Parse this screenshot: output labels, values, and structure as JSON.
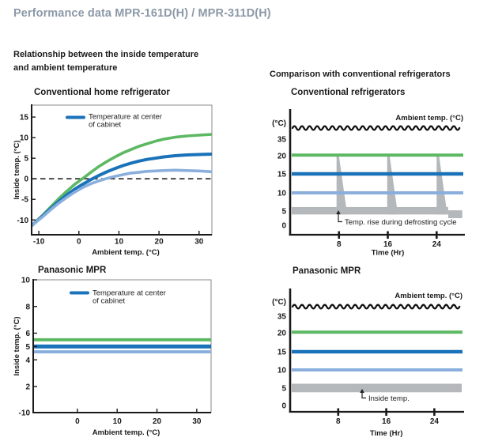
{
  "page": {
    "title": "Performance data MPR-161D(H) / MPR-311D(H)"
  },
  "sections": {
    "left": {
      "heading_line1": "Relationship between the inside temperature",
      "heading_line2": "and ambient temperature"
    },
    "right": {
      "heading": "Comparison with conventional refrigerators"
    }
  },
  "colors": {
    "accent_blue": "#1a72b9",
    "green": "#5db863",
    "light_blue": "#8aafdd",
    "gray_band": "#b4b8ba",
    "title_gray": "#8c99a7",
    "text": "#1a1a1a"
  },
  "chart_data": [
    {
      "type": "line",
      "title": "Conventional home refrigerator",
      "xlabel": "Ambient temp.  (°C)",
      "ylabel": "Inside temp.  (°C)",
      "x_ticks": [
        -10,
        0,
        10,
        20,
        30
      ],
      "y_ticks": [
        15,
        10,
        5,
        0,
        -5,
        -10
      ],
      "xlim": [
        -11.8,
        33.2
      ],
      "ylim": [
        -13.6,
        17.9
      ],
      "zero_line_dashed": true,
      "legend": {
        "color": "#1a72b9",
        "line1": "Temperature at center",
        "line2": "of cabinet"
      },
      "series": [
        {
          "name": "upper-limit",
          "color": "#5db863",
          "width": 3.6,
          "points": [
            [
              -11.8,
              -11.4
            ],
            [
              -9,
              -8.8
            ],
            [
              -7,
              -6.8
            ],
            [
              -5,
              -4.8
            ],
            [
              -3,
              -3.0
            ],
            [
              -1,
              -1.3
            ],
            [
              1,
              0.1
            ],
            [
              3,
              1.6
            ],
            [
              5,
              3.0
            ],
            [
              7,
              4.2
            ],
            [
              9,
              5.3
            ],
            [
              11,
              6.3
            ],
            [
              13,
              7.1
            ],
            [
              15,
              7.9
            ],
            [
              17,
              8.5
            ],
            [
              19,
              9.1
            ],
            [
              21,
              9.6
            ],
            [
              24,
              10.1
            ],
            [
              27,
              10.4
            ],
            [
              30,
              10.6
            ],
            [
              33.2,
              10.8
            ]
          ]
        },
        {
          "name": "center-of-cabinet",
          "color": "#1a72b9",
          "width": 4,
          "points": [
            [
              -11.8,
              -11.4
            ],
            [
              -9,
              -9.0
            ],
            [
              -7,
              -7.2
            ],
            [
              -5,
              -5.5
            ],
            [
              -3,
              -3.9
            ],
            [
              -1,
              -2.5
            ],
            [
              1,
              -1.3
            ],
            [
              3,
              -0.2
            ],
            [
              5,
              0.8
            ],
            [
              7,
              1.7
            ],
            [
              9,
              2.5
            ],
            [
              11,
              3.2
            ],
            [
              13,
              3.8
            ],
            [
              15,
              4.3
            ],
            [
              17,
              4.7
            ],
            [
              19,
              5.0
            ],
            [
              21,
              5.3
            ],
            [
              24,
              5.6
            ],
            [
              27,
              5.8
            ],
            [
              30,
              5.9
            ],
            [
              33.2,
              6.0
            ]
          ]
        },
        {
          "name": "lower-limit",
          "color": "#8aafdd",
          "width": 3.6,
          "points": [
            [
              -11.8,
              -11.4
            ],
            [
              -9,
              -9.2
            ],
            [
              -7,
              -7.5
            ],
            [
              -5,
              -5.9
            ],
            [
              -3,
              -4.5
            ],
            [
              -1,
              -3.2
            ],
            [
              1,
              -2.1
            ],
            [
              3,
              -1.2
            ],
            [
              5,
              -0.5
            ],
            [
              7,
              0.1
            ],
            [
              9,
              0.6
            ],
            [
              11,
              1.0
            ],
            [
              13,
              1.4
            ],
            [
              15,
              1.6
            ],
            [
              17,
              1.8
            ],
            [
              19,
              1.9
            ],
            [
              21,
              2.0
            ],
            [
              24,
              2.1
            ],
            [
              27,
              2.0
            ],
            [
              30,
              1.9
            ],
            [
              33.2,
              1.7
            ]
          ]
        }
      ]
    },
    {
      "type": "timeline",
      "title": "Conventional refrigerators",
      "unit_label": "(°C)",
      "ambient_label": "Ambient temp. (°C)",
      "xlabel": "Time (Hr)",
      "x_ticks": [
        8,
        16,
        24
      ],
      "y_tick_labels": [
        35,
        20,
        15,
        10,
        5,
        0
      ],
      "ambient_wave": true,
      "lines": [
        {
          "name": "upper-limit",
          "value": 20.5,
          "color": "#5db863",
          "width": 4
        },
        {
          "name": "center-of-cabinet",
          "value": 15,
          "color": "#1a72b9",
          "width": 4.6
        },
        {
          "name": "lower-limit",
          "value": 10,
          "color": "#8aafdd",
          "width": 4
        }
      ],
      "band": {
        "low": 3.8,
        "high": 6.1,
        "color": "#b4b8ba"
      },
      "defrost_spikes": {
        "hours": [
          7.6,
          15.9,
          24
        ],
        "peak": 20.2
      },
      "tail": {
        "from_hr": 25.9,
        "to_hr": 28.2,
        "low": 2.5,
        "high": 5.2
      },
      "annotation": "Temp. rise during defrosting cycle"
    },
    {
      "type": "line",
      "title": "Panasonic MPR",
      "xlabel": "Ambient temp.  (°C)",
      "ylabel": "Inside temp.  (°C)",
      "x_ticks": [
        0,
        10,
        20,
        30
      ],
      "y_ticks": [
        10,
        8,
        6,
        5,
        4,
        2,
        -10
      ],
      "y_ticks_no_mark": [
        -10
      ],
      "xlim": [
        -11.1,
        33.6
      ],
      "y_axis_break": true,
      "legend": {
        "color": "#1a72b9",
        "line1": "Temperature at center",
        "line2": "of cabinet"
      },
      "series": [
        {
          "name": "upper-limit",
          "color": "#5db863",
          "width": 4,
          "value": 5.5
        },
        {
          "name": "center-of-cabinet",
          "color": "#1a72b9",
          "width": 5,
          "value": 5.0
        },
        {
          "name": "lower-limit",
          "color": "#8aafdd",
          "width": 4,
          "value": 4.6
        }
      ]
    },
    {
      "type": "timeline",
      "title": "Panasonic MPR",
      "unit_label": "(°C)",
      "ambient_label": "Ambient temp. (°C)",
      "xlabel": "Time (Hr)",
      "x_ticks": [
        8,
        16,
        24
      ],
      "y_tick_labels": [
        35,
        20,
        15,
        10,
        5,
        0
      ],
      "ambient_wave": true,
      "lines": [
        {
          "name": "upper-limit",
          "value": 20.5,
          "color": "#5db863",
          "width": 4
        },
        {
          "name": "center-of-cabinet",
          "value": 15,
          "color": "#1a72b9",
          "width": 4.6
        },
        {
          "name": "lower-limit",
          "value": 10,
          "color": "#8aafdd",
          "width": 4
        }
      ],
      "band": {
        "low": 3.8,
        "high": 6.2,
        "color": "#b4b8ba"
      },
      "annotation": "Inside temp."
    }
  ]
}
